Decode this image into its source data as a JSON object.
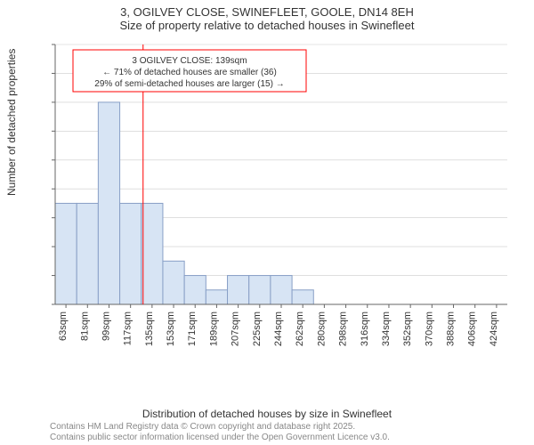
{
  "titles": {
    "line1": "3, OGILVEY CLOSE, SWINEFLEET, GOOLE, DN14 8EH",
    "line2": "Size of property relative to detached houses in Swinefleet"
  },
  "axes": {
    "ylabel": "Number of detached properties",
    "xlabel": "Distribution of detached houses by size in Swinefleet",
    "ylim": [
      0,
      18
    ],
    "ytick_step": 2,
    "xticks": [
      "63sqm",
      "81sqm",
      "99sqm",
      "117sqm",
      "135sqm",
      "153sqm",
      "171sqm",
      "189sqm",
      "207sqm",
      "225sqm",
      "244sqm",
      "262sqm",
      "280sqm",
      "298sqm",
      "316sqm",
      "334sqm",
      "352sqm",
      "370sqm",
      "388sqm",
      "406sqm",
      "424sqm"
    ],
    "axis_color": "#666666",
    "grid_color": "#cccccc",
    "tick_font_size": 11
  },
  "histogram": {
    "type": "histogram",
    "bin_count": 21,
    "values": [
      7,
      7,
      14,
      7,
      7,
      3,
      2,
      1,
      2,
      2,
      2,
      1,
      0,
      0,
      0,
      0,
      0,
      0,
      0,
      0,
      0
    ],
    "bar_fill": "#d7e4f4",
    "bar_stroke": "#889fc6",
    "bar_width_ratio": 1.0,
    "background_color": "#ffffff"
  },
  "marker": {
    "bin_index": 4,
    "line_color": "#ff0000",
    "line_width": 1
  },
  "annotation": {
    "lines": [
      "3 OGILVEY CLOSE: 139sqm",
      "← 71% of detached houses are smaller (36)",
      "29% of semi-detached houses are larger (15) →"
    ],
    "border_color": "#ff0000",
    "bg_color": "#ffffff",
    "font_size": 10,
    "text_color": "#333333"
  },
  "attribution": {
    "line1": "Contains HM Land Registry data © Crown copyright and database right 2025.",
    "line2": "Contains public sector information licensed under the Open Government Licence v3.0."
  }
}
